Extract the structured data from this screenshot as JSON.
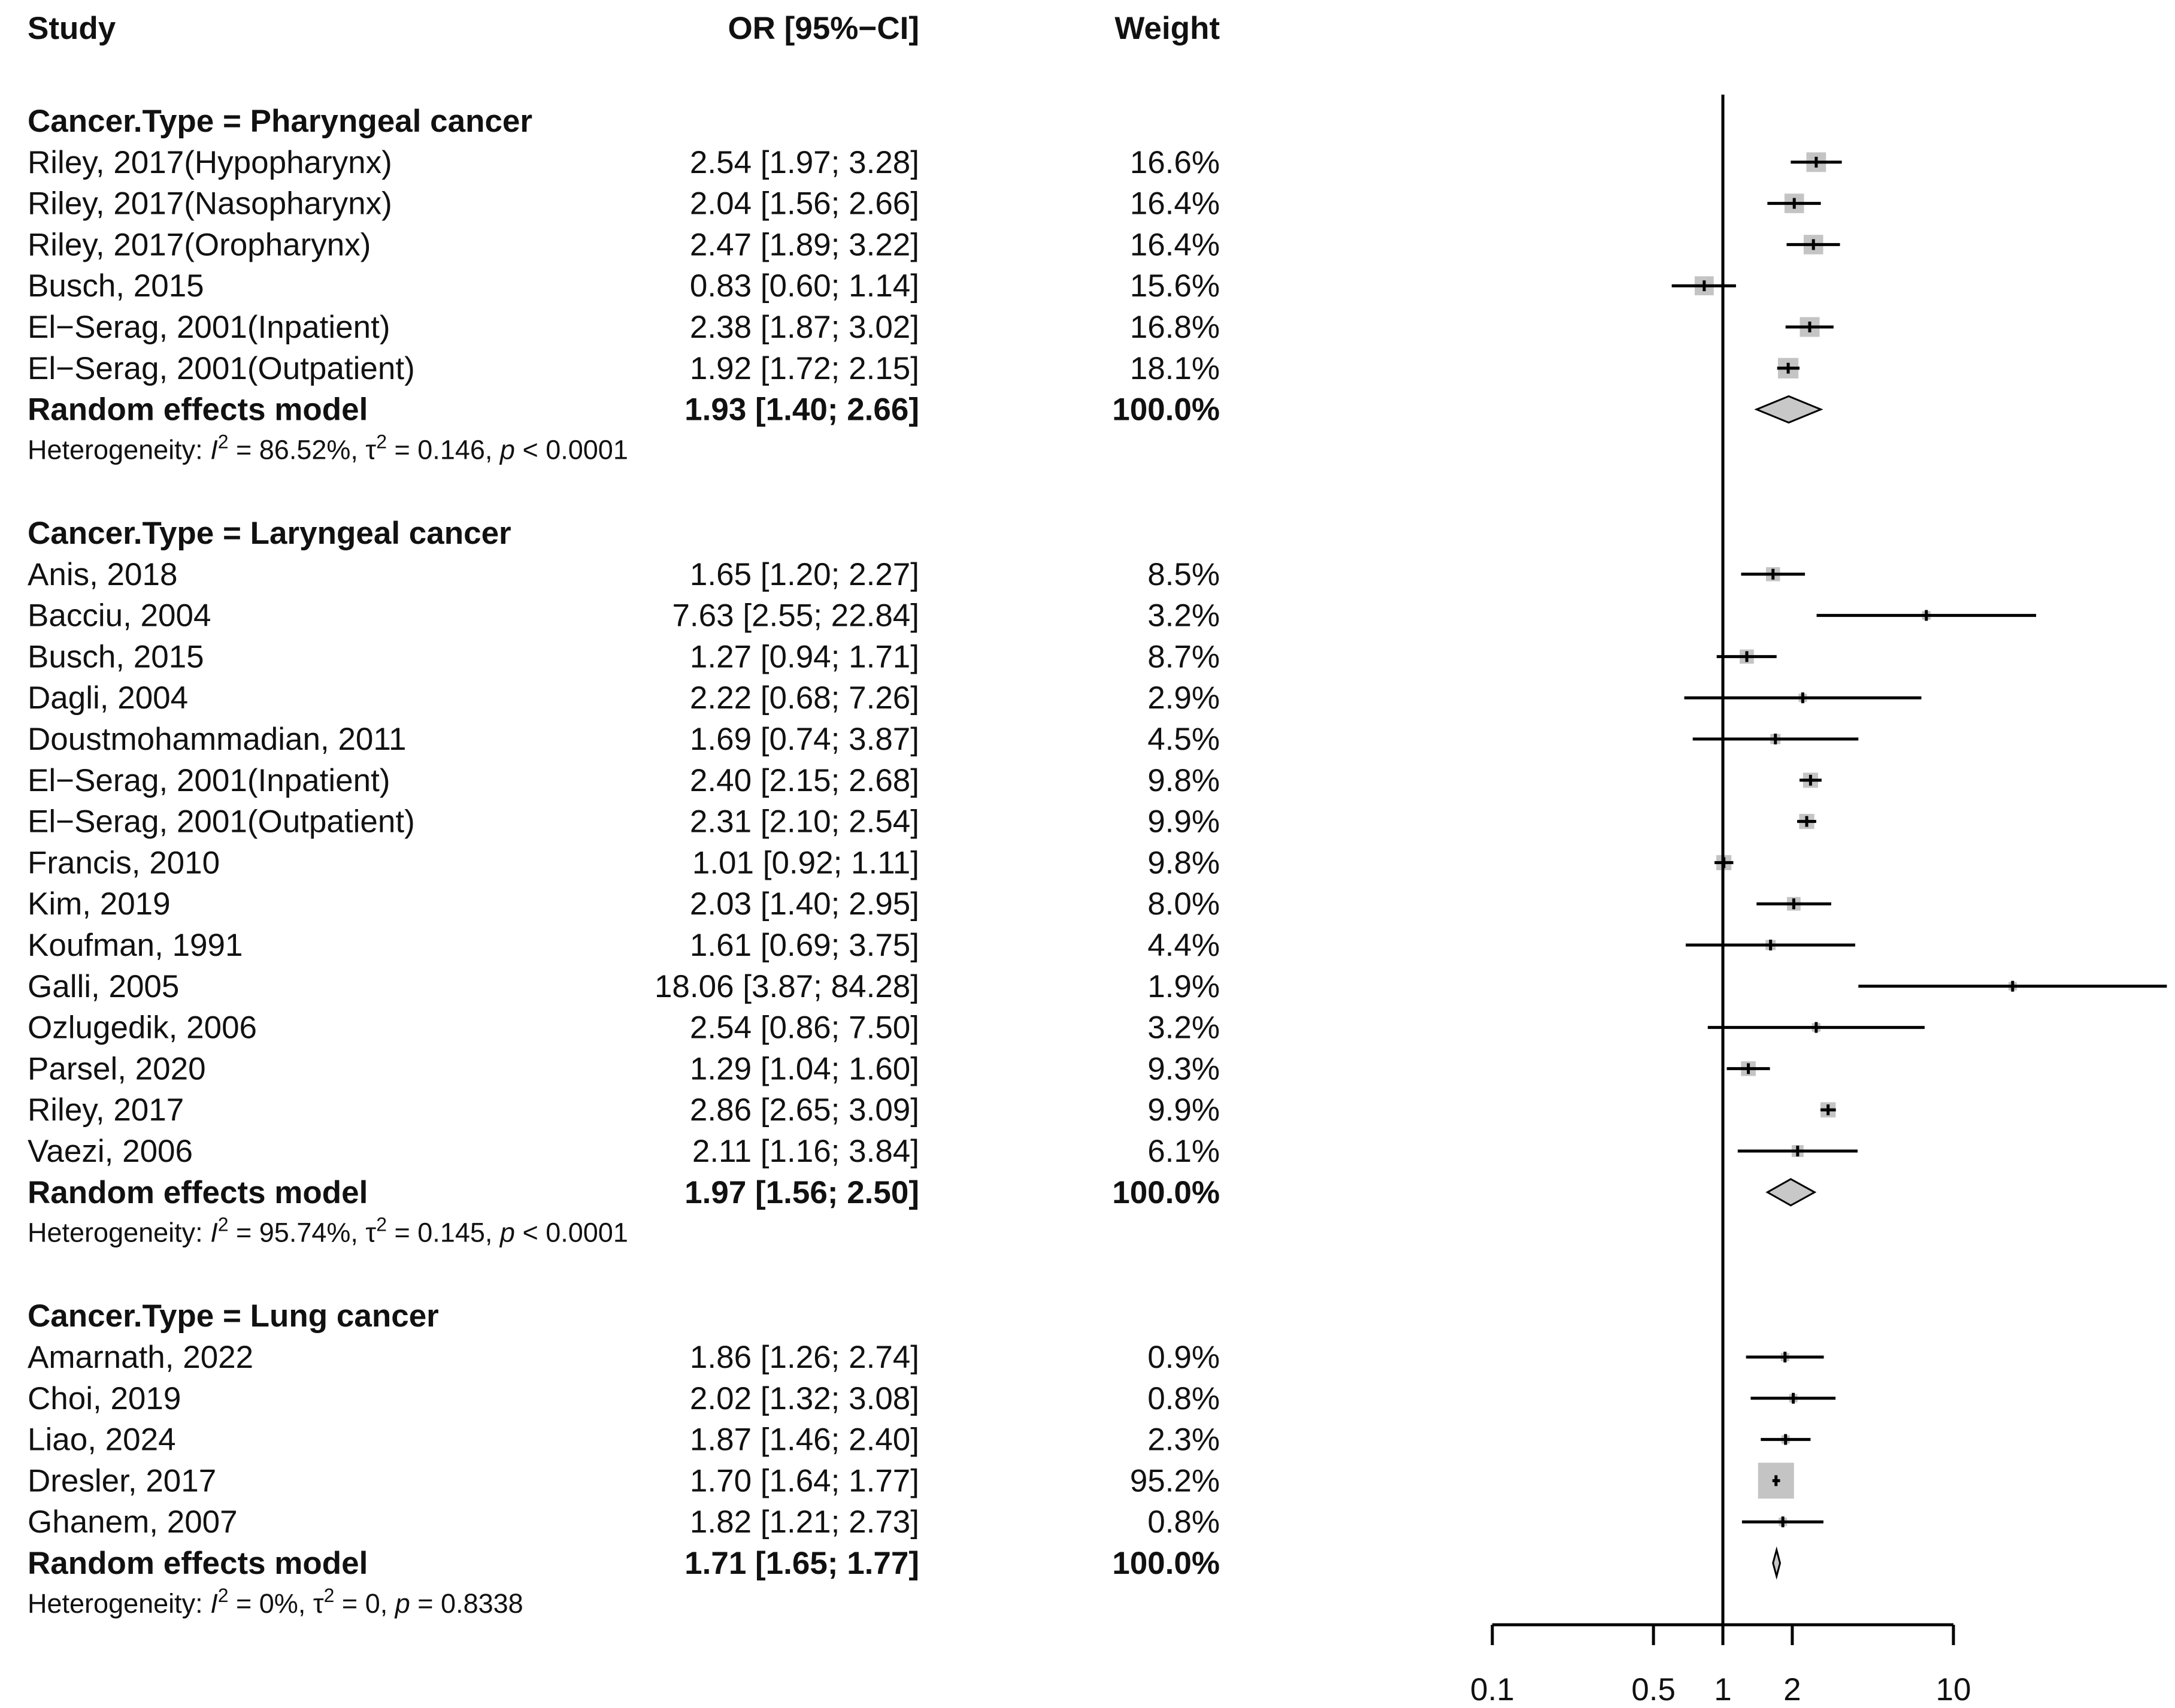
{
  "chart_data": {
    "type": "forest",
    "x_scale": "log",
    "xlim": [
      0.1,
      10
    ],
    "x_ticks": [
      "0.1",
      "0.5",
      "1",
      "2",
      "10"
    ],
    "x_tick_values": [
      0.1,
      0.5,
      1,
      2,
      10
    ],
    "reference_line": 1,
    "headers": {
      "study": "Study",
      "estimate": "OR [95%−CI]",
      "weight": "Weight"
    },
    "groups": [
      {
        "title": "Cancer.Type = Pharyngeal cancer",
        "studies": [
          {
            "study": "Riley, 2017(Hypopharynx)",
            "or": 2.54,
            "lo": 1.97,
            "hi": 3.28,
            "text": "2.54 [1.97;  3.28]",
            "weight": "16.6%"
          },
          {
            "study": "Riley, 2017(Nasopharynx)",
            "or": 2.04,
            "lo": 1.56,
            "hi": 2.66,
            "text": "2.04 [1.56;  2.66]",
            "weight": "16.4%"
          },
          {
            "study": "Riley, 2017(Oropharynx)",
            "or": 2.47,
            "lo": 1.89,
            "hi": 3.22,
            "text": "2.47 [1.89;  3.22]",
            "weight": "16.4%"
          },
          {
            "study": "Busch, 2015",
            "or": 0.83,
            "lo": 0.6,
            "hi": 1.14,
            "text": "0.83 [0.60;  1.14]",
            "weight": "15.6%"
          },
          {
            "study": "El−Serag, 2001(Inpatient)",
            "or": 2.38,
            "lo": 1.87,
            "hi": 3.02,
            "text": "2.38 [1.87;  3.02]",
            "weight": "16.8%"
          },
          {
            "study": "El−Serag, 2001(Outpatient)",
            "or": 1.92,
            "lo": 1.72,
            "hi": 2.15,
            "text": "1.92 [1.72;  2.15]",
            "weight": "18.1%"
          }
        ],
        "model": {
          "label": "Random effects model",
          "or": 1.93,
          "lo": 1.4,
          "hi": 2.66,
          "text": "1.93 [1.40;  2.66]",
          "weight": "100.0%"
        },
        "heterogeneity": {
          "prefix": "Heterogeneity: ",
          "i2_label": "I",
          "i2_sup": "2",
          "i2_value": " = 86.52%, ",
          "tau_label": "τ",
          "tau_sup": "2",
          "tau_value": " = 0.146, ",
          "p_label": "p",
          "p_value": " < 0.0001"
        }
      },
      {
        "title": "Cancer.Type = Laryngeal cancer",
        "studies": [
          {
            "study": "Anis, 2018",
            "or": 1.65,
            "lo": 1.2,
            "hi": 2.27,
            "text": "1.65 [1.20;  2.27]",
            "weight": "8.5%"
          },
          {
            "study": "Bacciu, 2004",
            "or": 7.63,
            "lo": 2.55,
            "hi": 22.84,
            "text": "7.63 [2.55; 22.84]",
            "weight": "3.2%"
          },
          {
            "study": "Busch, 2015",
            "or": 1.27,
            "lo": 0.94,
            "hi": 1.71,
            "text": "1.27 [0.94;  1.71]",
            "weight": "8.7%"
          },
          {
            "study": "Dagli, 2004",
            "or": 2.22,
            "lo": 0.68,
            "hi": 7.26,
            "text": "2.22 [0.68;  7.26]",
            "weight": "2.9%"
          },
          {
            "study": "Doustmohammadian, 2011",
            "or": 1.69,
            "lo": 0.74,
            "hi": 3.87,
            "text": "1.69 [0.74;  3.87]",
            "weight": "4.5%"
          },
          {
            "study": "El−Serag, 2001(Inpatient)",
            "or": 2.4,
            "lo": 2.15,
            "hi": 2.68,
            "text": "2.40 [2.15;  2.68]",
            "weight": "9.8%"
          },
          {
            "study": "El−Serag, 2001(Outpatient)",
            "or": 2.31,
            "lo": 2.1,
            "hi": 2.54,
            "text": "2.31 [2.10;  2.54]",
            "weight": "9.9%"
          },
          {
            "study": "Francis, 2010",
            "or": 1.01,
            "lo": 0.92,
            "hi": 1.11,
            "text": "1.01 [0.92;  1.11]",
            "weight": "9.8%"
          },
          {
            "study": "Kim, 2019",
            "or": 2.03,
            "lo": 1.4,
            "hi": 2.95,
            "text": "2.03 [1.40;  2.95]",
            "weight": "8.0%"
          },
          {
            "study": "Koufman, 1991",
            "or": 1.61,
            "lo": 0.69,
            "hi": 3.75,
            "text": "1.61 [0.69;  3.75]",
            "weight": "4.4%"
          },
          {
            "study": "Galli, 2005",
            "or": 18.06,
            "lo": 3.87,
            "hi": 84.28,
            "text": "18.06 [3.87; 84.28]",
            "weight": "1.9%"
          },
          {
            "study": "Ozlugedik, 2006",
            "or": 2.54,
            "lo": 0.86,
            "hi": 7.5,
            "text": "2.54 [0.86;  7.50]",
            "weight": "3.2%"
          },
          {
            "study": "Parsel, 2020",
            "or": 1.29,
            "lo": 1.04,
            "hi": 1.6,
            "text": "1.29 [1.04;  1.60]",
            "weight": "9.3%"
          },
          {
            "study": "Riley, 2017",
            "or": 2.86,
            "lo": 2.65,
            "hi": 3.09,
            "text": "2.86 [2.65;  3.09]",
            "weight": "9.9%"
          },
          {
            "study": "Vaezi, 2006",
            "or": 2.11,
            "lo": 1.16,
            "hi": 3.84,
            "text": "2.11 [1.16;  3.84]",
            "weight": "6.1%"
          }
        ],
        "model": {
          "label": "Random effects model",
          "or": 1.97,
          "lo": 1.56,
          "hi": 2.5,
          "text": "1.97 [1.56;  2.50]",
          "weight": "100.0%"
        },
        "heterogeneity": {
          "prefix": "Heterogeneity: ",
          "i2_label": "I",
          "i2_sup": "2",
          "i2_value": " = 95.74%, ",
          "tau_label": "τ",
          "tau_sup": "2",
          "tau_value": " = 0.145, ",
          "p_label": "p",
          "p_value": " < 0.0001"
        }
      },
      {
        "title": "Cancer.Type = Lung cancer",
        "studies": [
          {
            "study": "Amarnath, 2022",
            "or": 1.86,
            "lo": 1.26,
            "hi": 2.74,
            "text": "1.86 [1.26;  2.74]",
            "weight": "0.9%"
          },
          {
            "study": "Choi, 2019",
            "or": 2.02,
            "lo": 1.32,
            "hi": 3.08,
            "text": "2.02 [1.32;  3.08]",
            "weight": "0.8%"
          },
          {
            "study": "Liao, 2024",
            "or": 1.87,
            "lo": 1.46,
            "hi": 2.4,
            "text": "1.87 [1.46;  2.40]",
            "weight": "2.3%"
          },
          {
            "study": "Dresler, 2017",
            "or": 1.7,
            "lo": 1.64,
            "hi": 1.77,
            "text": "1.70 [1.64;  1.77]",
            "weight": "95.2%"
          },
          {
            "study": "Ghanem, 2007",
            "or": 1.82,
            "lo": 1.21,
            "hi": 2.73,
            "text": "1.82 [1.21;  2.73]",
            "weight": "0.8%"
          }
        ],
        "model": {
          "label": "Random effects model",
          "or": 1.71,
          "lo": 1.65,
          "hi": 1.77,
          "text": "1.71 [1.65;  1.77]",
          "weight": "100.0%"
        },
        "heterogeneity": {
          "prefix": "Heterogeneity: ",
          "i2_label": "I",
          "i2_sup": "2",
          "i2_value": " = 0%, ",
          "tau_label": "τ",
          "tau_sup": "2",
          "tau_value": " = 0, ",
          "p_label": "p",
          "p_value": " = 0.8338"
        }
      }
    ],
    "colors": {
      "square": "#c4c4c4",
      "diamond": "#c8c8c8",
      "line": "#000000",
      "text": "#111111"
    }
  }
}
